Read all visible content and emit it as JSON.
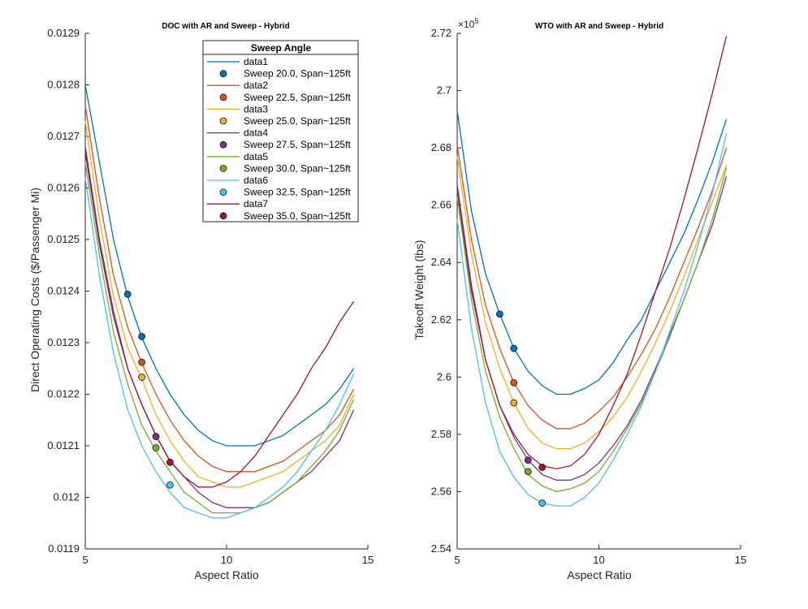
{
  "colors": [
    "#0072BD",
    "#D95319",
    "#EDB120",
    "#7E2F8E",
    "#77AC30",
    "#4DBEEE",
    "#A2142F"
  ],
  "chart_data": [
    {
      "type": "line",
      "title": "DOC with AR and Sweep - Hybrid",
      "xlabel": "Aspect Ratio",
      "ylabel": "Direct Operating Costs ($/Passenger Mi)",
      "xlim": [
        5,
        15
      ],
      "ylim": [
        0.0119,
        0.0129
      ],
      "xticks": [
        5,
        10,
        15
      ],
      "yticks": [
        0.0119,
        0.012,
        0.0121,
        0.0122,
        0.0123,
        0.0124,
        0.0125,
        0.0126,
        0.0127,
        0.0128,
        0.0129
      ],
      "ytick_labels": [
        "0.0119",
        "0.012",
        "0.0121",
        "0.0122",
        "0.0123",
        "0.0124",
        "0.0125",
        "0.0126",
        "0.0127",
        "0.0128",
        "0.0129"
      ],
      "legend_title": "Sweep Angle",
      "legend_location": "top-right",
      "x": [
        5,
        5.5,
        6,
        6.5,
        7,
        7.5,
        8,
        8.5,
        9,
        9.5,
        10,
        10.5,
        11,
        11.5,
        12,
        12.5,
        13,
        13.5,
        14,
        14.5
      ],
      "series": [
        {
          "name": "data1",
          "values": [
            0.0128,
            0.01265,
            0.0125,
            0.01239,
            0.01231,
            0.01225,
            0.0122,
            0.01216,
            0.01213,
            0.01211,
            0.0121,
            0.0121,
            0.0121,
            0.01211,
            0.01212,
            0.01214,
            0.01216,
            0.01218,
            0.01221,
            0.01225
          ]
        },
        {
          "name": "data2",
          "values": [
            0.01276,
            0.01258,
            0.01243,
            0.01233,
            0.01226,
            0.0122,
            0.01215,
            0.01211,
            0.01208,
            0.01206,
            0.01205,
            0.01205,
            0.01205,
            0.01206,
            0.01207,
            0.01209,
            0.01211,
            0.01213,
            0.01216,
            0.01221
          ]
        },
        {
          "name": "data3",
          "values": [
            0.01273,
            0.01254,
            0.01239,
            0.01229,
            0.01223,
            0.01216,
            0.01211,
            0.01207,
            0.01204,
            0.01203,
            0.01202,
            0.01202,
            0.01203,
            0.01204,
            0.01205,
            0.01207,
            0.01209,
            0.01211,
            0.01214,
            0.0122
          ]
        },
        {
          "name": "data4",
          "values": [
            0.01267,
            0.01249,
            0.01235,
            0.01225,
            0.01218,
            0.01212,
            0.01207,
            0.01204,
            0.01201,
            0.01199,
            0.01198,
            0.01198,
            0.01198,
            0.01199,
            0.01201,
            0.01203,
            0.01205,
            0.01208,
            0.01211,
            0.01217
          ]
        },
        {
          "name": "data5",
          "values": [
            0.01265,
            0.01247,
            0.01232,
            0.01222,
            0.01214,
            0.01209,
            0.01205,
            0.01201,
            0.01199,
            0.01197,
            0.01197,
            0.01197,
            0.01198,
            0.01199,
            0.01201,
            0.01203,
            0.01206,
            0.01209,
            0.01213,
            0.01219
          ]
        },
        {
          "name": "data6",
          "values": [
            0.01262,
            0.01243,
            0.01228,
            0.01217,
            0.0121,
            0.01205,
            0.01201,
            0.01198,
            0.01197,
            0.01196,
            0.01196,
            0.01197,
            0.01198,
            0.012,
            0.01202,
            0.01205,
            0.01209,
            0.01213,
            0.01218,
            0.01224
          ]
        },
        {
          "name": "data7",
          "values": [
            0.01268,
            0.0125,
            0.01236,
            0.01225,
            0.01218,
            0.01212,
            0.01207,
            0.01204,
            0.01202,
            0.01202,
            0.01203,
            0.01205,
            0.01208,
            0.01212,
            0.01216,
            0.0122,
            0.01225,
            0.01229,
            0.01234,
            0.01238
          ]
        }
      ],
      "markers": [
        {
          "name": "Sweep 20.0, Span~125ft",
          "x": 6.5,
          "y": 0.012394
        },
        {
          "name": "Sweep 22.5, Span~125ft",
          "x": 7.0,
          "y": 0.012262
        },
        {
          "name": "Sweep 25.0, Span~125ft",
          "x": 7.0,
          "y": 0.012233
        },
        {
          "name": "Sweep 27.5, Span~125ft",
          "x": 7.5,
          "y": 0.012118
        },
        {
          "name": "Sweep 30.0, Span~125ft",
          "x": 7.5,
          "y": 0.012096
        },
        {
          "name": "Sweep 32.5, Span~125ft",
          "x": 8.0,
          "y": 0.012024
        },
        {
          "name": "Sweep 35.0, Span~125ft",
          "x": 8.0,
          "y": 0.012068
        }
      ],
      "extra_markers": [
        {
          "x": 7.0,
          "y": 0.012312,
          "series": 0
        }
      ]
    },
    {
      "type": "line",
      "title": "WTO with AR and Sweep - Hybrid",
      "xlabel": "Aspect Ratio",
      "ylabel": "Takeoff Weight (lbs)",
      "exponent_label": "×10^5",
      "xlim": [
        5,
        15
      ],
      "ylim": [
        2.54,
        2.72
      ],
      "xticks": [
        5,
        10,
        15
      ],
      "yticks": [
        2.54,
        2.56,
        2.58,
        2.6,
        2.62,
        2.64,
        2.66,
        2.68,
        2.7,
        2.72
      ],
      "ytick_labels": [
        "2.54",
        "2.56",
        "2.58",
        "2.6",
        "2.62",
        "2.64",
        "2.66",
        "2.68",
        "2.7",
        "2.72"
      ],
      "x": [
        5,
        5.5,
        6,
        6.5,
        7,
        7.5,
        8,
        8.5,
        9,
        9.5,
        10,
        10.5,
        11,
        11.5,
        12,
        12.5,
        13,
        13.5,
        14,
        14.5
      ],
      "series": [
        {
          "name": "data1",
          "values": [
            2.693,
            2.658,
            2.636,
            2.622,
            2.61,
            2.602,
            2.597,
            2.594,
            2.594,
            2.596,
            2.599,
            2.605,
            2.613,
            2.62,
            2.63,
            2.64,
            2.65,
            2.662,
            2.675,
            2.69
          ]
        },
        {
          "name": "data2",
          "values": [
            2.681,
            2.648,
            2.625,
            2.61,
            2.598,
            2.59,
            2.585,
            2.582,
            2.582,
            2.584,
            2.588,
            2.593,
            2.6,
            2.608,
            2.617,
            2.628,
            2.64,
            2.652,
            2.665,
            2.68
          ]
        },
        {
          "name": "data3",
          "values": [
            2.677,
            2.643,
            2.619,
            2.603,
            2.591,
            2.582,
            2.577,
            2.575,
            2.575,
            2.577,
            2.581,
            2.586,
            2.593,
            2.602,
            2.612,
            2.623,
            2.635,
            2.648,
            2.661,
            2.674
          ]
        },
        {
          "name": "data4",
          "values": [
            2.665,
            2.63,
            2.606,
            2.59,
            2.579,
            2.571,
            2.566,
            2.564,
            2.564,
            2.566,
            2.57,
            2.576,
            2.583,
            2.592,
            2.603,
            2.615,
            2.627,
            2.64,
            2.653,
            2.67
          ]
        },
        {
          "name": "data5",
          "values": [
            2.663,
            2.627,
            2.602,
            2.586,
            2.575,
            2.566,
            2.562,
            2.56,
            2.561,
            2.563,
            2.567,
            2.574,
            2.582,
            2.591,
            2.602,
            2.614,
            2.627,
            2.64,
            2.655,
            2.673
          ]
        },
        {
          "name": "data6",
          "values": [
            2.655,
            2.617,
            2.591,
            2.574,
            2.565,
            2.559,
            2.556,
            2.555,
            2.555,
            2.558,
            2.563,
            2.571,
            2.58,
            2.59,
            2.602,
            2.616,
            2.63,
            2.646,
            2.664,
            2.685
          ]
        },
        {
          "name": "data7",
          "values": [
            2.667,
            2.632,
            2.606,
            2.59,
            2.58,
            2.573,
            2.569,
            2.568,
            2.569,
            2.573,
            2.58,
            2.59,
            2.601,
            2.615,
            2.63,
            2.645,
            2.662,
            2.68,
            2.699,
            2.719
          ]
        }
      ],
      "markers": [
        {
          "name": "Sweep 20.0, Span~125ft",
          "x": 6.5,
          "y": 2.622
        },
        {
          "name": "Sweep 22.5, Span~125ft",
          "x": 7.0,
          "y": 2.598
        },
        {
          "name": "Sweep 25.0, Span~125ft",
          "x": 7.0,
          "y": 2.591
        },
        {
          "name": "Sweep 27.5, Span~125ft",
          "x": 7.5,
          "y": 2.571
        },
        {
          "name": "Sweep 30.0, Span~125ft",
          "x": 7.5,
          "y": 2.567
        },
        {
          "name": "Sweep 32.5, Span~125ft",
          "x": 8.0,
          "y": 2.556
        },
        {
          "name": "Sweep 35.0, Span~125ft",
          "x": 8.0,
          "y": 2.5685
        }
      ],
      "extra_markers": [
        {
          "x": 7.0,
          "y": 2.61,
          "series": 0
        }
      ]
    }
  ]
}
